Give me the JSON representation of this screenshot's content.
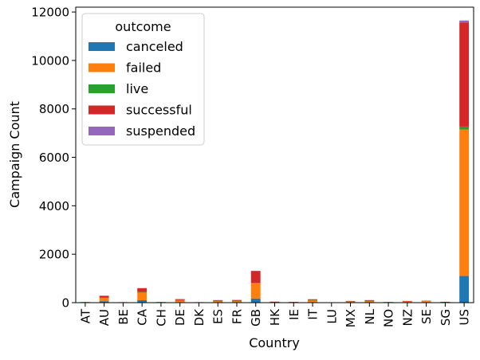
{
  "chart_data": {
    "type": "bar",
    "stacked": true,
    "xlabel": "Country",
    "ylabel": "Campaign Count",
    "ylim": [
      0,
      12200
    ],
    "yticks": [
      0,
      2000,
      4000,
      6000,
      8000,
      10000,
      12000
    ],
    "grid": false,
    "legend": {
      "title": "outcome",
      "placement": "top-left"
    },
    "categories": [
      "AT",
      "AU",
      "BE",
      "CA",
      "CH",
      "DE",
      "DK",
      "ES",
      "FR",
      "GB",
      "HK",
      "IE",
      "IT",
      "LU",
      "MX",
      "NL",
      "NO",
      "NZ",
      "SE",
      "SG",
      "US"
    ],
    "series": [
      {
        "name": "canceled",
        "color": "#1f77b4",
        "values": [
          5,
          60,
          5,
          100,
          5,
          20,
          5,
          15,
          15,
          170,
          5,
          5,
          20,
          0,
          10,
          15,
          5,
          10,
          10,
          5,
          1100
        ]
      },
      {
        "name": "failed",
        "color": "#ff7f0e",
        "values": [
          15,
          150,
          10,
          330,
          15,
          80,
          10,
          60,
          60,
          630,
          10,
          15,
          90,
          0,
          30,
          60,
          15,
          45,
          50,
          20,
          6050
        ]
      },
      {
        "name": "live",
        "color": "#2ca02c",
        "values": [
          0,
          5,
          0,
          10,
          0,
          5,
          0,
          5,
          5,
          20,
          20,
          0,
          5,
          0,
          25,
          5,
          0,
          0,
          0,
          0,
          120
        ]
      },
      {
        "name": "successful",
        "color": "#d62728",
        "values": [
          5,
          70,
          5,
          160,
          5,
          40,
          5,
          25,
          30,
          490,
          5,
          10,
          25,
          0,
          5,
          25,
          5,
          15,
          20,
          10,
          4300
        ]
      },
      {
        "name": "suspended",
        "color": "#9467bd",
        "values": [
          0,
          0,
          0,
          0,
          0,
          0,
          0,
          0,
          0,
          0,
          0,
          0,
          0,
          0,
          0,
          0,
          0,
          0,
          0,
          0,
          80
        ]
      }
    ]
  }
}
